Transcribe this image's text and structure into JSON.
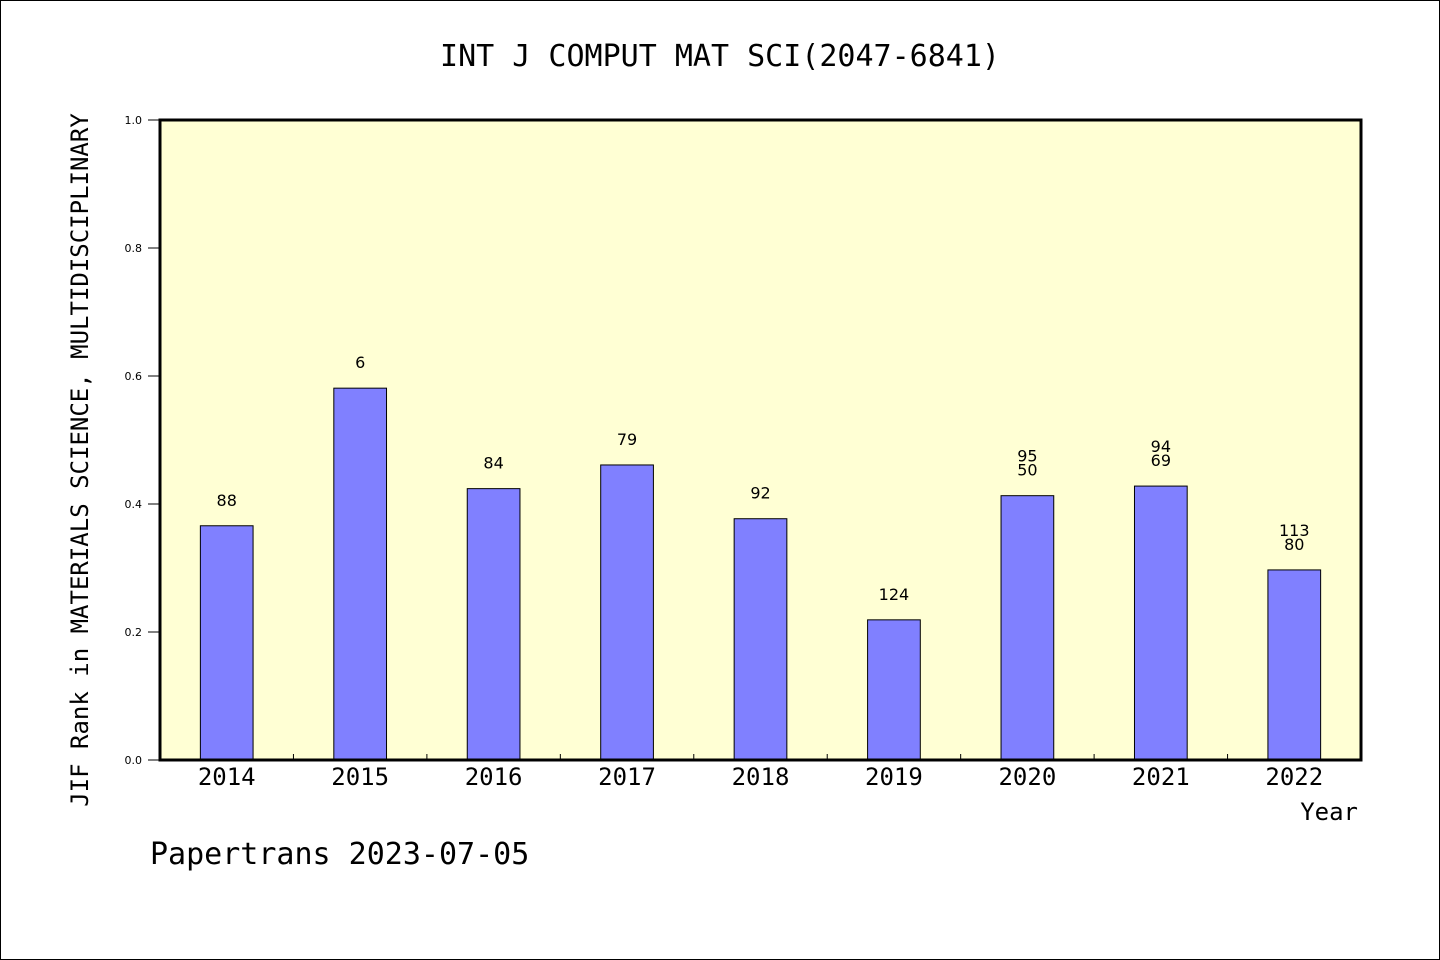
{
  "chart_data": {
    "type": "bar",
    "title": "INT J COMPUT MAT SCI(2047-6841)",
    "xlabel": "Year",
    "ylabel": "JIF Rank in MATERIALS SCIENCE, MULTIDISCIPLINARY",
    "ylim": [
      0,
      1.0
    ],
    "yticks": [
      "0.0",
      "0.2",
      "0.4",
      "0.6",
      "0.8",
      "1.0"
    ],
    "categories": [
      "2014",
      "2015",
      "2016",
      "2017",
      "2018",
      "2019",
      "2020",
      "2021",
      "2022"
    ],
    "values": [
      0.366,
      0.581,
      0.424,
      0.461,
      0.377,
      0.219,
      0.413,
      0.428,
      0.297
    ],
    "bar_labels": [
      [
        "88"
      ],
      [
        "6"
      ],
      [
        "84"
      ],
      [
        "79"
      ],
      [
        "92"
      ],
      [
        "124"
      ],
      [
        "95",
        "50"
      ],
      [
        "94",
        "69"
      ],
      [
        "113",
        "80"
      ]
    ],
    "grid": false,
    "colors": {
      "plot_background": "#FFFFD4",
      "bar_fill": "#8080FF",
      "bar_stroke": "#000000"
    }
  },
  "footer": {
    "credit": "Papertrans 2023-07-05"
  }
}
